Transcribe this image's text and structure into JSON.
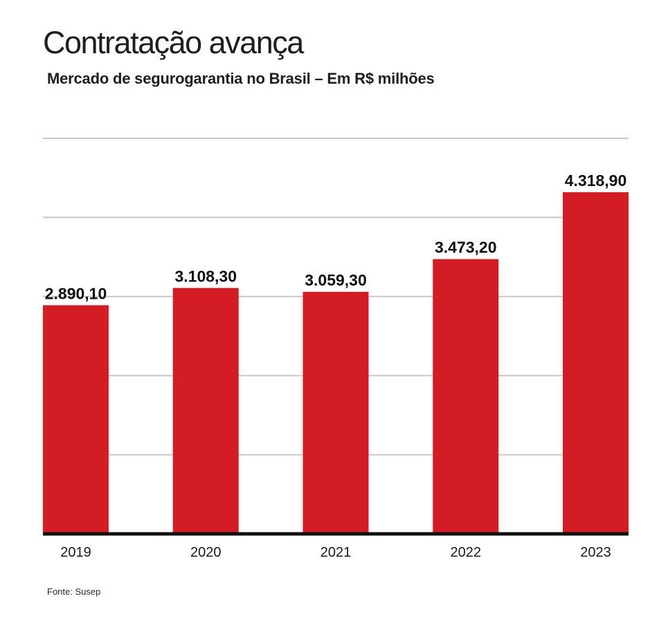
{
  "header": {
    "title": "Contratação avança",
    "subtitle": "Mercado de segurogarantia no Brasil – Em R$ milhões"
  },
  "footer": {
    "source": "Fonte: Susep"
  },
  "colors": {
    "bar": "#d41c24",
    "gridline": "#c8c8c8",
    "baseline": "#111111"
  },
  "chart_data": {
    "type": "bar",
    "title": "Contratação avança",
    "subtitle": "Mercado de segurogarantia no Brasil – Em R$ milhões",
    "xlabel": "",
    "ylabel": "",
    "categories": [
      "2019",
      "2020",
      "2021",
      "2022",
      "2023"
    ],
    "values": [
      2890.1,
      3108.3,
      3059.3,
      3473.2,
      4318.9
    ],
    "value_labels": [
      "2.890,10",
      "3.108,30",
      "3.059,30",
      "3.473,20",
      "4.318,90"
    ],
    "ylim": [
      0,
      5000
    ],
    "yticks": [
      0,
      1000,
      2000,
      3000,
      4000,
      5000
    ],
    "grid": true,
    "legend": "none"
  }
}
